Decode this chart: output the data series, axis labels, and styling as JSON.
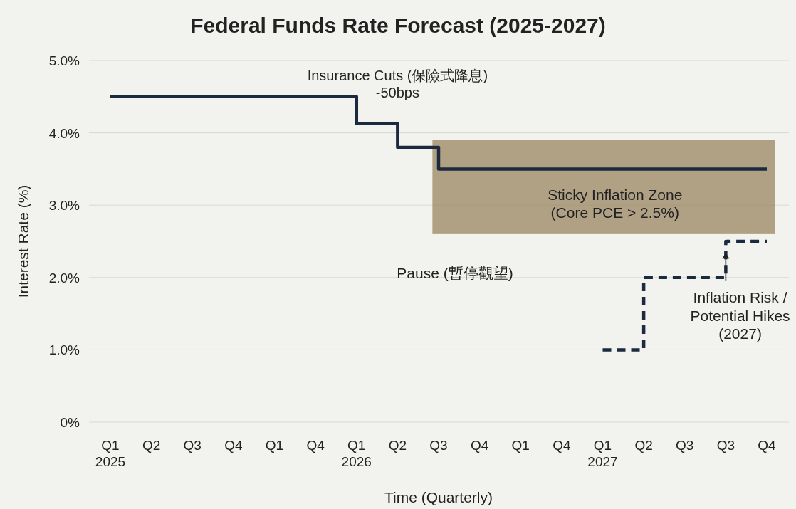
{
  "chart_data": {
    "type": "step",
    "title": "Federal Funds Rate Forecast (2025-2027)",
    "xlabel": "Time (Quarterly)",
    "ylabel": "Interest Rate (%)",
    "categories": [
      "Q1\n2025",
      "Q2",
      "Q3",
      "Q4",
      "Q1",
      "Q4",
      "Q1\n2026",
      "Q2",
      "Q3",
      "Q4",
      "Q1",
      "Q4",
      "Q1\n2027",
      "Q2",
      "Q3",
      "Q3",
      "Q4"
    ],
    "series": [
      {
        "color": "#1b2a3f",
        "line_style": "solid",
        "values": [
          4.5,
          4.5,
          4.5,
          4.5,
          4.5,
          4.5,
          4.13,
          3.8,
          3.5,
          3.5,
          3.5,
          3.5,
          3.5,
          3.5,
          3.5,
          3.5,
          3.5
        ]
      },
      {
        "color": "#1b2a3f",
        "line_style": "dashed",
        "values": [
          null,
          null,
          null,
          null,
          null,
          null,
          null,
          null,
          null,
          null,
          null,
          null,
          1.0,
          2.0,
          2.0,
          2.5,
          2.5
        ]
      }
    ],
    "bands": [
      {
        "axis": "y",
        "from": 2.6,
        "to": 3.9,
        "color": "#9a8460"
      }
    ],
    "ylim": [
      0,
      5
    ],
    "yticks": [
      {
        "value": 0,
        "label": "0%"
      },
      {
        "value": 1,
        "label": "1.0%"
      },
      {
        "value": 2,
        "label": "2.0%"
      },
      {
        "value": 3,
        "label": "3.0%"
      },
      {
        "value": 4,
        "label": "4.0%"
      },
      {
        "value": 5,
        "label": "5.0%"
      }
    ],
    "grid": "y",
    "marker": "none",
    "annotations": [
      "Insurance Cuts (保險式降息)\n-50bps",
      "Sticky Inflation Zone\n(Core PCE > 2.5%)",
      "Pause (暫停觀望)",
      "Inflation Risk /\nPotential Hikes\n(2027)"
    ]
  }
}
